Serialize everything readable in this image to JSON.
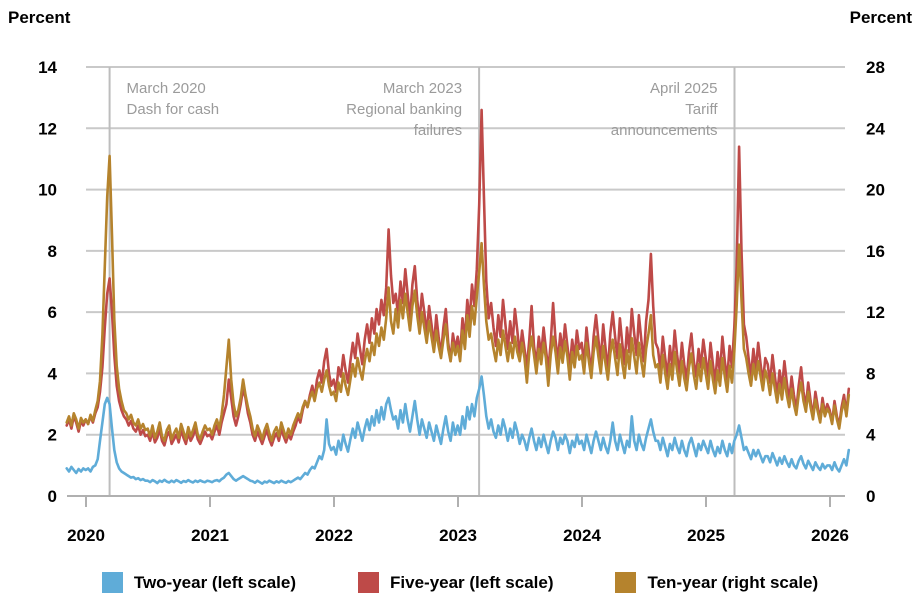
{
  "header": {
    "left_axis_title": "Percent",
    "right_axis_title": "Percent"
  },
  "chart_data": {
    "type": "line",
    "x_axis": {
      "ticks": [
        2020,
        2021,
        2022,
        2023,
        2024,
        2025,
        2026
      ],
      "range": [
        2019.84,
        2026.15
      ]
    },
    "left_axis": {
      "title": "Percent",
      "ticks": [
        0,
        2,
        4,
        6,
        8,
        10,
        12,
        14
      ],
      "range": [
        0,
        14
      ]
    },
    "right_axis": {
      "title": "Percent",
      "ticks": [
        0,
        4,
        8,
        12,
        16,
        20,
        24,
        28
      ],
      "range": [
        0,
        28
      ]
    },
    "grid": true,
    "legend_position": "bottom",
    "colors": {
      "grid": "#c9c9c9",
      "axis": "#b0b0b0",
      "event_line": "#bdbdbd",
      "annotation_text": "#9b9b9b"
    },
    "annotations": [
      {
        "x": 2020.19,
        "align": "left",
        "lines": [
          "March 2020",
          "Dash for cash"
        ]
      },
      {
        "x": 2023.17,
        "align": "right",
        "lines": [
          "March 2023",
          "Regional banking",
          "failures"
        ]
      },
      {
        "x": 2025.23,
        "align": "right",
        "lines": [
          "April 2025",
          "Tariff",
          "announcements"
        ]
      }
    ],
    "x_start": 2019.844,
    "x_step": 0.01923,
    "series": [
      {
        "name": "Two-year (left scale)",
        "id": "two-year",
        "scale": "left",
        "color": "#5FACD8",
        "values": [
          0.9,
          0.8,
          0.95,
          0.85,
          0.75,
          0.88,
          0.8,
          0.9,
          0.85,
          0.9,
          0.8,
          0.95,
          1.0,
          1.2,
          1.8,
          2.4,
          3.0,
          3.2,
          3.0,
          2.2,
          1.5,
          1.1,
          0.9,
          0.8,
          0.75,
          0.7,
          0.65,
          0.6,
          0.62,
          0.55,
          0.58,
          0.52,
          0.55,
          0.5,
          0.5,
          0.45,
          0.52,
          0.48,
          0.42,
          0.5,
          0.46,
          0.53,
          0.47,
          0.44,
          0.5,
          0.45,
          0.52,
          0.48,
          0.43,
          0.49,
          0.46,
          0.52,
          0.47,
          0.44,
          0.5,
          0.46,
          0.51,
          0.47,
          0.45,
          0.5,
          0.48,
          0.45,
          0.5,
          0.52,
          0.48,
          0.55,
          0.6,
          0.7,
          0.75,
          0.65,
          0.55,
          0.5,
          0.55,
          0.6,
          0.65,
          0.6,
          0.55,
          0.5,
          0.48,
          0.43,
          0.5,
          0.45,
          0.4,
          0.47,
          0.44,
          0.5,
          0.46,
          0.42,
          0.48,
          0.44,
          0.5,
          0.46,
          0.43,
          0.49,
          0.45,
          0.5,
          0.55,
          0.6,
          0.55,
          0.65,
          0.75,
          0.7,
          0.85,
          0.95,
          0.9,
          1.1,
          1.3,
          1.2,
          1.5,
          2.5,
          1.7,
          1.5,
          1.6,
          1.35,
          1.8,
          1.5,
          2.0,
          1.7,
          1.45,
          1.85,
          2.2,
          1.9,
          2.4,
          2.1,
          1.8,
          2.2,
          2.5,
          2.15,
          2.6,
          2.3,
          2.8,
          2.4,
          2.9,
          2.5,
          3.0,
          3.2,
          2.8,
          2.5,
          2.6,
          2.2,
          2.8,
          2.4,
          3.0,
          2.5,
          2.1,
          2.6,
          3.1,
          2.5,
          2.0,
          2.5,
          2.2,
          1.9,
          2.4,
          2.1,
          1.8,
          2.3,
          2.0,
          1.7,
          2.2,
          2.6,
          2.1,
          1.8,
          2.4,
          2.0,
          2.3,
          2.0,
          2.6,
          2.2,
          2.9,
          2.5,
          3.0,
          2.6,
          3.2,
          3.5,
          3.9,
          3.3,
          2.6,
          2.2,
          2.5,
          2.1,
          1.9,
          2.3,
          2.0,
          2.5,
          2.2,
          1.8,
          2.2,
          1.9,
          2.4,
          2.1,
          1.7,
          2.0,
          1.8,
          1.5,
          1.9,
          2.2,
          1.8,
          1.5,
          1.9,
          1.6,
          2.0,
          1.7,
          1.4,
          1.8,
          2.1,
          1.9,
          1.5,
          1.9,
          1.7,
          2.0,
          1.8,
          1.4,
          1.8,
          1.6,
          2.0,
          1.7,
          1.8,
          1.5,
          2.0,
          1.7,
          1.4,
          1.8,
          2.1,
          1.8,
          1.5,
          1.9,
          1.6,
          1.4,
          1.8,
          2.4,
          1.8,
          1.5,
          2.0,
          1.7,
          1.4,
          1.8,
          1.6,
          2.6,
          1.8,
          1.5,
          2.0,
          1.7,
          1.5,
          1.9,
          2.2,
          2.5,
          2.1,
          1.8,
          1.8,
          1.5,
          1.9,
          1.6,
          1.3,
          1.7,
          1.5,
          1.9,
          1.6,
          1.4,
          1.8,
          1.5,
          1.3,
          1.7,
          1.9,
          1.6,
          1.3,
          1.7,
          1.5,
          1.8,
          1.6,
          1.4,
          1.8,
          1.5,
          1.3,
          1.6,
          1.4,
          1.8,
          1.5,
          1.3,
          1.7,
          1.4,
          1.8,
          2.0,
          2.3,
          1.9,
          1.5,
          1.6,
          1.4,
          1.2,
          1.5,
          1.3,
          1.5,
          1.3,
          1.1,
          1.3,
          1.3,
          1.1,
          1.4,
          1.2,
          1.0,
          1.25,
          1.05,
          1.3,
          1.1,
          0.95,
          1.2,
          1.0,
          0.9,
          1.15,
          1.3,
          1.05,
          0.9,
          1.15,
          1.0,
          0.85,
          1.1,
          0.95,
          0.85,
          1.05,
          0.9,
          1.0,
          1.0,
          0.85,
          1.1,
          0.9,
          0.8,
          1.0,
          1.2,
          1.0,
          1.5
        ]
      },
      {
        "name": "Five-year (left scale)",
        "id": "five-year",
        "scale": "left",
        "color": "#BE4A48",
        "values": [
          2.3,
          2.5,
          2.2,
          2.6,
          2.4,
          2.1,
          2.45,
          2.3,
          2.5,
          2.35,
          2.6,
          2.4,
          2.7,
          2.9,
          3.4,
          4.2,
          5.5,
          6.6,
          7.1,
          6.0,
          4.6,
          3.6,
          3.1,
          2.8,
          2.6,
          2.5,
          2.3,
          2.45,
          2.2,
          2.1,
          2.3,
          2.0,
          2.15,
          1.95,
          2.0,
          1.8,
          2.1,
          1.75,
          1.9,
          2.2,
          1.8,
          1.65,
          1.95,
          2.1,
          1.7,
          1.85,
          2.0,
          1.75,
          2.15,
          1.9,
          1.7,
          2.05,
          1.8,
          1.95,
          2.2,
          1.85,
          1.7,
          1.9,
          2.1,
          1.95,
          2.0,
          1.85,
          2.1,
          2.3,
          2.0,
          2.4,
          2.7,
          3.0,
          3.8,
          3.2,
          2.6,
          2.3,
          2.6,
          3.0,
          3.5,
          3.2,
          2.7,
          2.4,
          2.0,
          1.8,
          2.1,
          1.9,
          1.7,
          1.95,
          2.15,
          1.85,
          1.65,
          1.9,
          2.05,
          1.8,
          2.2,
          1.95,
          1.75,
          2.0,
          1.85,
          2.1,
          2.3,
          2.6,
          2.4,
          2.8,
          3.1,
          2.9,
          3.3,
          3.6,
          3.2,
          3.8,
          4.1,
          3.7,
          4.4,
          4.8,
          4.0,
          3.6,
          3.8,
          3.4,
          4.2,
          3.9,
          4.6,
          4.1,
          3.7,
          4.4,
          5.0,
          4.5,
          5.3,
          4.8,
          4.3,
          5.1,
          5.6,
          5.0,
          5.8,
          5.3,
          6.1,
          5.6,
          6.4,
          5.9,
          6.8,
          8.7,
          7.2,
          6.3,
          6.6,
          5.9,
          7.0,
          6.3,
          7.4,
          6.6,
          5.8,
          6.9,
          7.5,
          6.4,
          5.7,
          6.6,
          6.0,
          5.3,
          6.2,
          5.6,
          4.9,
          5.9,
          5.2,
          4.6,
          5.5,
          6.1,
          5.0,
          4.4,
          5.3,
          4.8,
          5.2,
          4.6,
          5.8,
          5.1,
          6.4,
          5.7,
          6.9,
          6.2,
          7.4,
          9.5,
          12.6,
          9.8,
          7.0,
          5.8,
          6.3,
          5.5,
          4.9,
          5.9,
          5.2,
          6.4,
          5.6,
          4.8,
          5.7,
          5.0,
          6.1,
          5.4,
          4.6,
          5.4,
          4.8,
          4.2,
          5.1,
          6.2,
          4.9,
          4.3,
          5.2,
          4.6,
          5.5,
          4.8,
          4.1,
          5.0,
          6.3,
          5.1,
          4.4,
          5.3,
          4.7,
          5.6,
          4.9,
          4.2,
          5.1,
          4.5,
          5.4,
          4.8,
          5.0,
          4.3,
          5.5,
          4.7,
          4.0,
          5.2,
          5.9,
          5.1,
          4.4,
          5.6,
          4.8,
          4.1,
          5.3,
          6.0,
          5.2,
          4.5,
          5.8,
          5.0,
          4.3,
          5.5,
          4.7,
          6.1,
          5.3,
          4.6,
          5.9,
          5.1,
          4.4,
          5.7,
          6.4,
          7.9,
          6.2,
          5.0,
          4.8,
          4.1,
          5.2,
          4.5,
          3.9,
          4.9,
          4.2,
          5.4,
          4.6,
          4.0,
          5.0,
          4.3,
          3.8,
          4.7,
          5.3,
          4.4,
          3.9,
          4.8,
          4.2,
          5.1,
          4.5,
          3.9,
          5.0,
          4.3,
          3.7,
          4.7,
          4.0,
          5.2,
          4.4,
          3.8,
          4.9,
          4.2,
          5.5,
          7.5,
          11.4,
          8.0,
          5.6,
          5.2,
          4.5,
          3.9,
          4.8,
          4.1,
          5.0,
          4.3,
          3.7,
          4.5,
          4.3,
          3.7,
          4.6,
          3.9,
          3.3,
          4.1,
          3.5,
          4.4,
          3.7,
          3.1,
          3.9,
          3.3,
          2.8,
          3.6,
          4.2,
          3.4,
          2.9,
          3.7,
          3.1,
          2.6,
          3.4,
          2.9,
          2.5,
          3.2,
          2.7,
          3.0,
          2.8,
          2.4,
          3.1,
          2.6,
          2.3,
          2.9,
          3.3,
          2.7,
          3.5
        ]
      },
      {
        "name": "Ten-year (right scale)",
        "id": "ten-year",
        "scale": "right",
        "color": "#B5832D",
        "values": [
          4.8,
          5.2,
          4.6,
          5.4,
          5.0,
          4.4,
          5.1,
          4.8,
          5.0,
          4.7,
          5.3,
          4.9,
          5.6,
          6.2,
          7.5,
          10.5,
          15.0,
          19.5,
          22.2,
          17.0,
          11.5,
          8.5,
          7.0,
          6.2,
          5.6,
          5.4,
          5.0,
          5.3,
          4.8,
          4.6,
          5.0,
          4.4,
          4.7,
          4.3,
          4.4,
          3.9,
          4.6,
          3.8,
          4.2,
          4.8,
          3.9,
          3.6,
          4.3,
          4.6,
          3.7,
          4.1,
          4.4,
          3.8,
          4.7,
          4.2,
          3.7,
          4.5,
          3.9,
          4.3,
          4.8,
          4.0,
          3.7,
          4.2,
          4.6,
          4.3,
          4.4,
          4.0,
          4.6,
          5.0,
          4.4,
          5.3,
          6.6,
          8.4,
          10.2,
          7.6,
          6.0,
          5.2,
          5.6,
          6.4,
          7.6,
          6.6,
          5.8,
          5.2,
          4.4,
          3.9,
          4.6,
          4.2,
          3.7,
          4.3,
          4.7,
          4.1,
          3.6,
          4.2,
          4.5,
          3.9,
          4.8,
          4.3,
          3.8,
          4.4,
          4.0,
          4.6,
          5.0,
          5.4,
          5.1,
          5.8,
          6.2,
          5.8,
          6.4,
          6.8,
          6.2,
          7.0,
          7.4,
          6.8,
          7.6,
          8.2,
          7.2,
          6.6,
          6.8,
          6.2,
          7.4,
          6.8,
          8.0,
          7.2,
          6.6,
          7.6,
          8.6,
          7.8,
          9.0,
          8.2,
          7.6,
          8.8,
          9.6,
          8.8,
          10.0,
          9.2,
          10.6,
          9.8,
          11.0,
          10.2,
          11.6,
          13.6,
          11.4,
          10.6,
          12.2,
          11.0,
          12.8,
          11.6,
          13.2,
          12.0,
          10.8,
          12.4,
          13.4,
          11.8,
          10.6,
          12.0,
          11.0,
          10.0,
          11.4,
          10.4,
          9.4,
          10.8,
          9.8,
          9.0,
          10.2,
          11.2,
          9.6,
          8.8,
          10.0,
          9.2,
          9.8,
          8.8,
          10.8,
          9.6,
          11.8,
          10.4,
          12.4,
          11.2,
          13.0,
          14.6,
          16.5,
          13.8,
          11.4,
          10.2,
          10.6,
          9.6,
          8.8,
          10.2,
          9.2,
          10.8,
          9.8,
          8.8,
          10.0,
          9.0,
          10.4,
          9.4,
          8.8,
          10.0,
          9.0,
          7.4,
          9.4,
          10.4,
          9.2,
          8.0,
          9.6,
          8.6,
          10.0,
          9.0,
          7.2,
          9.2,
          10.4,
          9.4,
          8.0,
          9.7,
          8.7,
          10.1,
          9.1,
          7.6,
          9.4,
          8.4,
          9.8,
          8.9,
          9.2,
          8.0,
          10.0,
          8.8,
          7.7,
          9.4,
          10.4,
          9.1,
          8.0,
          9.8,
          8.6,
          7.6,
          9.3,
          10.2,
          9.0,
          7.9,
          9.9,
          8.7,
          7.7,
          9.5,
          8.3,
          10.3,
          9.1,
          8.0,
          10.0,
          8.8,
          7.8,
          9.6,
          10.6,
          11.8,
          9.2,
          8.4,
          8.6,
          7.4,
          9.2,
          8.0,
          7.0,
          8.6,
          7.6,
          9.4,
          8.2,
          7.2,
          8.8,
          7.7,
          6.9,
          8.4,
          9.3,
          7.9,
          7.0,
          8.6,
          7.5,
          9.0,
          8.0,
          7.0,
          8.8,
          7.6,
          6.7,
          8.2,
          7.2,
          9.0,
          7.8,
          6.8,
          8.5,
          7.4,
          9.4,
          12.5,
          16.4,
          12.8,
          9.6,
          9.0,
          8.0,
          7.2,
          8.6,
          7.6,
          8.8,
          7.8,
          6.9,
          8.2,
          7.6,
          6.6,
          8.0,
          7.0,
          6.1,
          7.3,
          6.3,
          7.7,
          6.6,
          5.8,
          7.0,
          6.0,
          5.3,
          6.6,
          7.4,
          6.2,
          5.5,
          6.8,
          5.8,
          5.0,
          6.3,
          5.5,
          4.8,
          6.0,
          5.2,
          5.7,
          5.4,
          4.7,
          5.9,
          5.0,
          4.4,
          5.5,
          6.2,
          5.2,
          6.6
        ]
      }
    ]
  },
  "legend": {
    "items": [
      {
        "label": "Two-year (left scale)",
        "color": "#5FACD8"
      },
      {
        "label": "Five-year (left scale)",
        "color": "#BE4A48"
      },
      {
        "label": "Ten-year (right scale)",
        "color": "#B5832D"
      }
    ]
  }
}
